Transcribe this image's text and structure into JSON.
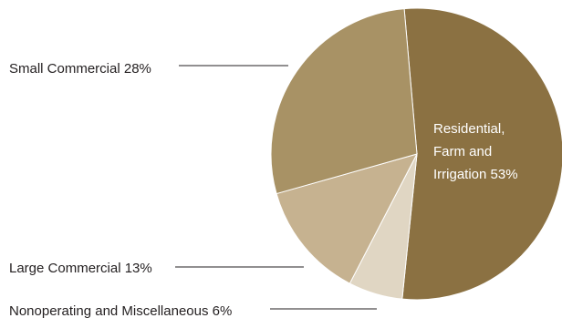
{
  "chart_data": {
    "type": "pie",
    "title": "",
    "slices": [
      {
        "name": "Residential, Farm and Irrigation",
        "value": 53,
        "label_lines": [
          "Residential,",
          "Farm and",
          "Irrigation 53%"
        ],
        "color": "#8b7142"
      },
      {
        "name": "Nonoperating and Miscellaneous",
        "value": 6,
        "label": "Nonoperating and Miscellaneous 6%",
        "color": "#e0d6c3"
      },
      {
        "name": "Large Commercial",
        "value": 13,
        "label": "Large Commercial 13%",
        "color": "#c6b290"
      },
      {
        "name": "Small Commercial",
        "value": 28,
        "label": "Small Commercial 28%",
        "color": "#a89265"
      }
    ]
  }
}
